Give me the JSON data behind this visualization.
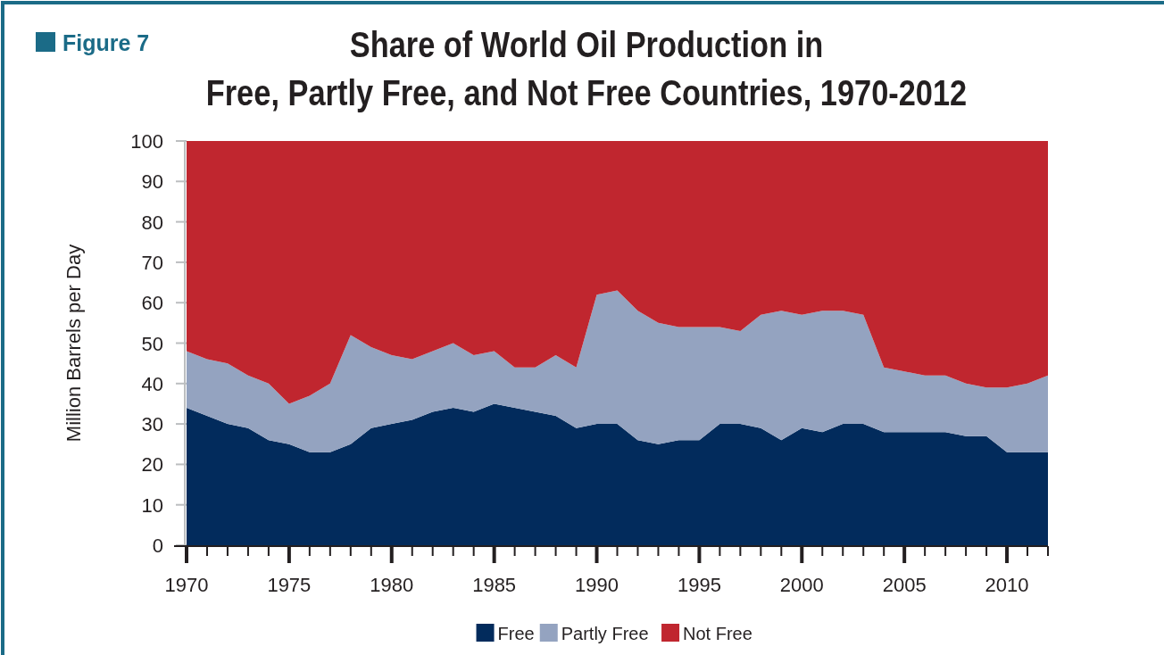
{
  "chart_data": {
    "type": "area",
    "stacked": true,
    "title": "Share of World Oil Production in\nFree, Partly Free, and Not Free Countries, 1970-2012",
    "subtitle": "Figure 7",
    "ylabel": "Million Barrels per Day",
    "x": [
      1970,
      1971,
      1972,
      1973,
      1974,
      1975,
      1976,
      1977,
      1978,
      1979,
      1980,
      1981,
      1982,
      1983,
      1984,
      1985,
      1986,
      1987,
      1988,
      1989,
      1990,
      1991,
      1992,
      1993,
      1994,
      1995,
      1996,
      1997,
      1998,
      1999,
      2000,
      2001,
      2002,
      2003,
      2004,
      2005,
      2006,
      2007,
      2008,
      2009,
      2010,
      2011,
      2012
    ],
    "series": [
      {
        "name": "Free",
        "color": "#022b5c",
        "values": [
          34,
          32,
          30,
          29,
          26,
          25,
          23,
          23,
          25,
          29,
          30,
          31,
          33,
          34,
          33,
          35,
          34,
          33,
          32,
          29,
          30,
          30,
          26,
          25,
          26,
          26,
          30,
          30,
          29,
          26,
          29,
          28,
          30,
          30,
          28,
          28,
          28,
          28,
          27,
          27,
          23,
          23,
          23
        ]
      },
      {
        "name": "Partly Free",
        "color": "#94a3c0",
        "values": [
          14,
          14,
          15,
          13,
          14,
          10,
          14,
          17,
          27,
          20,
          17,
          15,
          15,
          16,
          14,
          13,
          10,
          11,
          15,
          15,
          32,
          33,
          32,
          30,
          28,
          28,
          24,
          23,
          28,
          32,
          28,
          30,
          28,
          27,
          16,
          15,
          14,
          14,
          13,
          12,
          16,
          17,
          19
        ]
      },
      {
        "name": "Not Free",
        "color": "#c0262f",
        "values": [
          52,
          54,
          55,
          58,
          60,
          65,
          63,
          60,
          48,
          51,
          53,
          54,
          52,
          50,
          53,
          52,
          56,
          56,
          53,
          56,
          38,
          37,
          42,
          45,
          46,
          46,
          46,
          47,
          43,
          42,
          43,
          42,
          42,
          43,
          56,
          57,
          58,
          58,
          60,
          61,
          61,
          60,
          58
        ]
      }
    ],
    "xlim": [
      1970,
      2012
    ],
    "xticks": [
      1970,
      {
        "value": 1971,
        "label": null
      },
      {
        "value": 1972,
        "label": null
      },
      {
        "value": 1973,
        "label": null
      },
      {
        "value": 1974,
        "label": null
      },
      1975,
      {
        "value": 1976,
        "label": null
      },
      {
        "value": 1977,
        "label": null
      },
      {
        "value": 1978,
        "label": null
      },
      {
        "value": 1979,
        "label": null
      },
      1980,
      {
        "value": 1981,
        "label": null
      },
      {
        "value": 1982,
        "label": null
      },
      {
        "value": 1983,
        "label": null
      },
      {
        "value": 1984,
        "label": null
      },
      1985,
      {
        "value": 1986,
        "label": null
      },
      {
        "value": 1987,
        "label": null
      },
      {
        "value": 1988,
        "label": null
      },
      {
        "value": 1989,
        "label": null
      },
      1990,
      {
        "value": 1991,
        "label": null
      },
      {
        "value": 1992,
        "label": null
      },
      {
        "value": 1993,
        "label": null
      },
      {
        "value": 1994,
        "label": null
      },
      1995,
      {
        "value": 1996,
        "label": null
      },
      {
        "value": 1997,
        "label": null
      },
      {
        "value": 1998,
        "label": null
      },
      {
        "value": 1999,
        "label": null
      },
      2000,
      {
        "value": 2001,
        "label": null
      },
      {
        "value": 2002,
        "label": null
      },
      {
        "value": 2003,
        "label": null
      },
      {
        "value": 2004,
        "label": null
      },
      2005,
      {
        "value": 2006,
        "label": null
      },
      {
        "value": 2007,
        "label": null
      },
      {
        "value": 2008,
        "label": null
      },
      {
        "value": 2009,
        "label": null
      },
      2010,
      {
        "value": 2011,
        "label": null
      },
      {
        "value": 2012,
        "label": null
      }
    ],
    "ylim": [
      0,
      100
    ],
    "yticks": [
      0,
      10,
      20,
      30,
      40,
      50,
      60,
      70,
      80,
      90,
      100
    ],
    "legend": "bottom"
  }
}
